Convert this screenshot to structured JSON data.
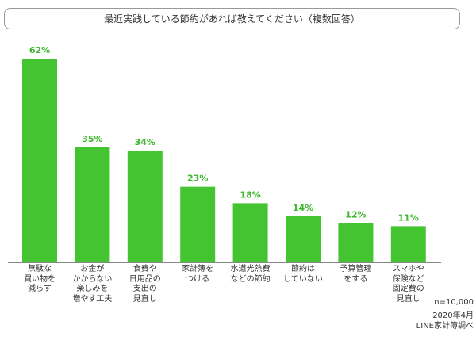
{
  "chart_data": {
    "type": "bar",
    "title": "最近実践している節約があれば教えてください（複数回答）",
    "categories": [
      "無駄な\n買い物を\n減らす",
      "お金が\nかからない\n楽しみを\n増やす工夫",
      "食費や\n日用品の\n支出の\n見直し",
      "家計簿を\nつける",
      "水道光熱費\nなどの節約",
      "節約は\nしていない",
      "予算管理\nをする",
      "スマホや\n保険など\n固定費の\n見直し"
    ],
    "values": [
      62,
      35,
      34,
      23,
      18,
      14,
      12,
      11
    ],
    "data_labels": [
      "62%",
      "35%",
      "34%",
      "23%",
      "18%",
      "14%",
      "12%",
      "11%"
    ],
    "unit": "%",
    "ylim": [
      0,
      62
    ],
    "grid": false,
    "xlabel": "",
    "ylabel": "",
    "bar_color": "#44c431",
    "label_color": "#3cb82c"
  },
  "footnotes": [
    "n=10,000",
    "2020年4月",
    "LINE家計簿調べ"
  ]
}
